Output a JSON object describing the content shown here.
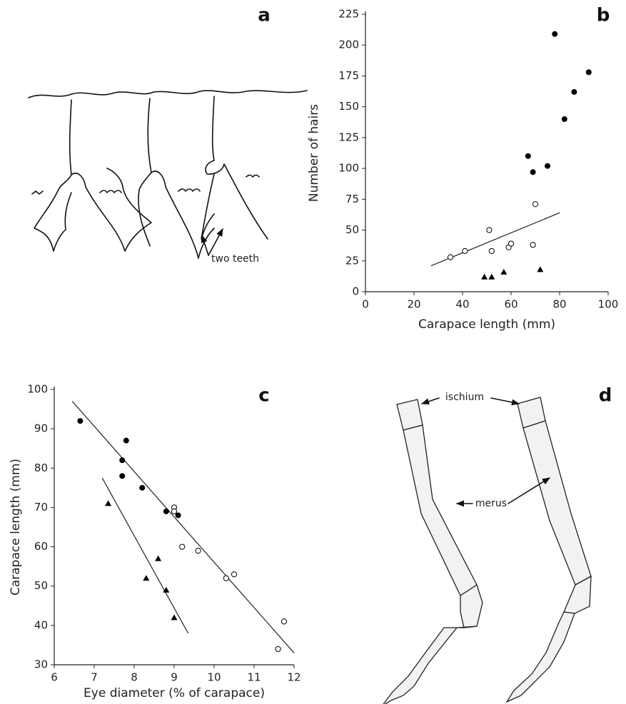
{
  "panels": {
    "a": {
      "label": "a",
      "annotation": "two teeth"
    },
    "d": {
      "label": "d",
      "annotations": [
        "ischium",
        "merus"
      ]
    }
  },
  "chart_data": [
    {
      "type": "scatter",
      "panel_label": "b",
      "x_label": "Carapace length (mm)",
      "y_label": "Number of hairs",
      "xlim": [
        0,
        100
      ],
      "xticks": [
        0,
        20,
        40,
        60,
        80,
        100
      ],
      "ylim": [
        0,
        225
      ],
      "yticks": [
        0,
        25,
        50,
        75,
        100,
        125,
        150,
        175,
        200,
        225
      ],
      "series": [
        {
          "marker": "filled-circle",
          "color": "#000000",
          "x": [
            78,
            92,
            86,
            82,
            67,
            69,
            75
          ],
          "values": [
            209,
            178,
            162,
            140,
            110,
            97,
            102
          ]
        },
        {
          "marker": "open-circle",
          "color": "#000000",
          "x": [
            35,
            41,
            51,
            52,
            59,
            60,
            69,
            70
          ],
          "values": [
            28,
            33,
            50,
            33,
            36,
            39,
            38,
            71
          ]
        },
        {
          "marker": "filled-triangle",
          "color": "#000000",
          "x": [
            49,
            52,
            57,
            72
          ],
          "values": [
            12,
            12,
            16,
            18
          ]
        }
      ],
      "lines": [
        {
          "x": [
            27,
            80
          ],
          "values": [
            21,
            64
          ]
        }
      ]
    },
    {
      "type": "scatter",
      "panel_label": "c",
      "x_label": "Eye diameter (% of carapace)",
      "y_label": "Carapace length (mm)",
      "xlim": [
        6,
        12
      ],
      "xticks": [
        6,
        7,
        8,
        9,
        10,
        11,
        12
      ],
      "ylim": [
        30,
        100
      ],
      "yticks": [
        30,
        40,
        50,
        60,
        70,
        80,
        90,
        100
      ],
      "series": [
        {
          "marker": "filled-circle",
          "color": "#000000",
          "x": [
            6.65,
            7.8,
            7.7,
            7.7,
            8.2,
            8.8,
            9.1
          ],
          "values": [
            92,
            87,
            82,
            78,
            75,
            69,
            68
          ]
        },
        {
          "marker": "open-circle",
          "color": "#000000",
          "x": [
            9.0,
            9.0,
            9.2,
            9.6,
            10.3,
            10.5,
            11.6,
            11.75
          ],
          "values": [
            70,
            69,
            60,
            59,
            52,
            53,
            34,
            41
          ]
        },
        {
          "marker": "filled-triangle",
          "color": "#000000",
          "x": [
            7.35,
            8.3,
            8.6,
            8.8,
            9.0
          ],
          "values": [
            71,
            52,
            57,
            49,
            42
          ]
        }
      ],
      "lines": [
        {
          "x": [
            6.45,
            12
          ],
          "values": [
            97,
            33
          ]
        },
        {
          "x": [
            7.2,
            9.35
          ],
          "values": [
            77.5,
            38
          ]
        }
      ]
    }
  ]
}
